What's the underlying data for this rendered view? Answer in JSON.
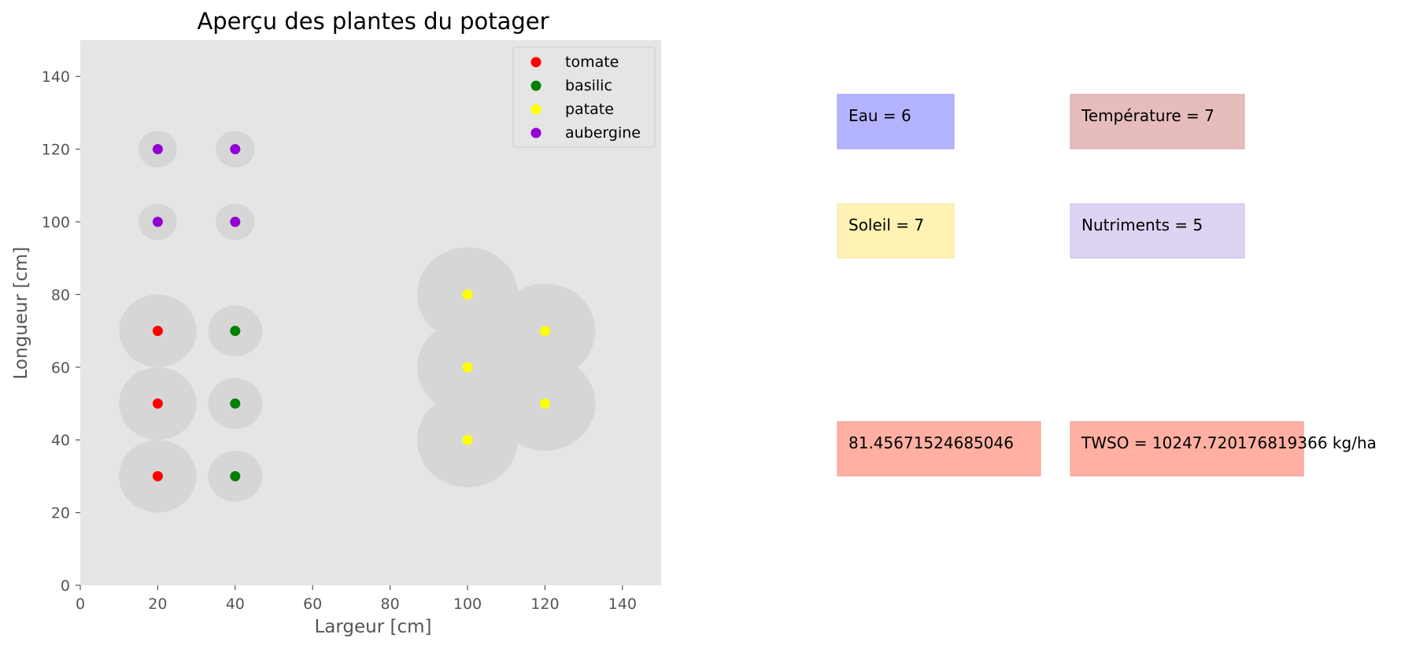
{
  "chart_data": {
    "type": "scatter",
    "title": "Aperçu des plantes du potager",
    "xlabel": "Largeur [cm]",
    "ylabel": "Longueur [cm]",
    "xlim": [
      0,
      150
    ],
    "ylim": [
      0,
      150
    ],
    "xticks": [
      0,
      20,
      40,
      60,
      80,
      100,
      120,
      140
    ],
    "yticks": [
      0,
      20,
      40,
      60,
      80,
      100,
      120,
      140
    ],
    "grid": false,
    "background": "#e5e5e5",
    "legend_position": "top-right",
    "zone_color": "#d6d6d6",
    "series": [
      {
        "name": "tomate",
        "color": "#ff0000",
        "zone_radius": 10,
        "points": [
          [
            20,
            30
          ],
          [
            20,
            50
          ],
          [
            20,
            70
          ]
        ]
      },
      {
        "name": "basilic",
        "color": "#008000",
        "zone_radius": 7,
        "points": [
          [
            40,
            30
          ],
          [
            40,
            50
          ],
          [
            40,
            70
          ]
        ]
      },
      {
        "name": "patate",
        "color": "#ffff00",
        "zone_radius": 13,
        "points": [
          [
            100,
            40
          ],
          [
            100,
            60
          ],
          [
            100,
            80
          ],
          [
            120,
            50
          ],
          [
            120,
            70
          ]
        ]
      },
      {
        "name": "aubergine",
        "color": "#9400d3",
        "zone_radius": 5,
        "points": [
          [
            20,
            100
          ],
          [
            20,
            120
          ],
          [
            40,
            100
          ],
          [
            40,
            120
          ]
        ]
      }
    ]
  },
  "info_boxes": [
    {
      "id": "eau",
      "text": "Eau = 6",
      "color": "#b3b3ff",
      "border": "#9b9bef"
    },
    {
      "id": "temperature",
      "text": "Température = 7",
      "color": "#e6bcbc",
      "border": "#d6a4a4"
    },
    {
      "id": "soleil",
      "text": "Soleil = 7",
      "color": "#fff2b3",
      "border": "#f4e39c"
    },
    {
      "id": "nutriments",
      "text": "Nutriments = 5",
      "color": "#ddd3f3",
      "border": "#cbbde8"
    },
    {
      "id": "score",
      "text": "81.45671524685046",
      "color": "#ffb0a3",
      "border": "#f39a8b"
    },
    {
      "id": "twso",
      "text": "TWSO = 10247.720176819366 kg/ha",
      "color": "#ffb0a3",
      "border": "#f39a8b"
    }
  ]
}
